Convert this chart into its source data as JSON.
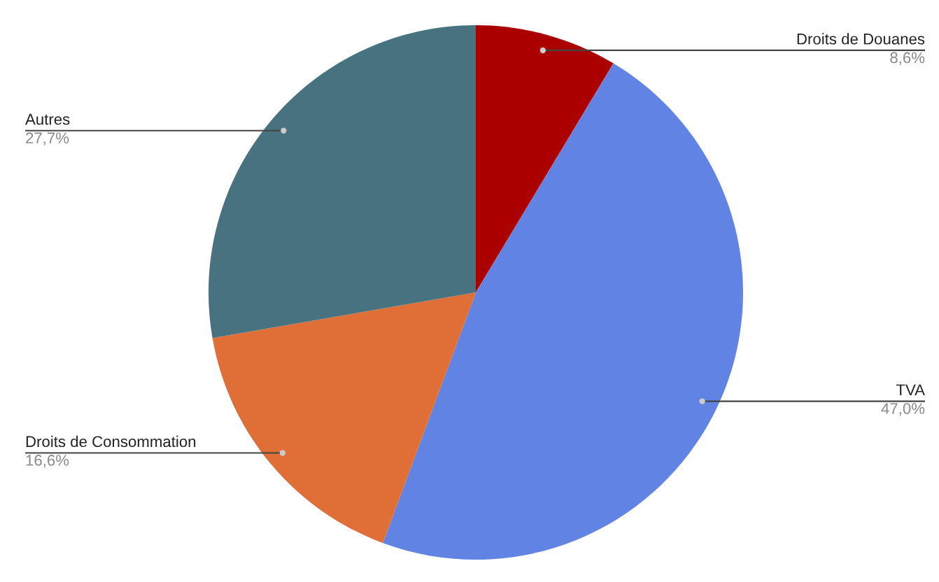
{
  "chart_data": {
    "type": "pie",
    "categories": [
      "Droits de Douanes",
      "TVA",
      "Droits de Consommation",
      "Autres"
    ],
    "values": [
      8.6,
      47.0,
      16.6,
      27.7
    ],
    "colors": [
      "#ab0000",
      "#6183e4",
      "#e06e37",
      "#46737f"
    ],
    "value_labels": [
      "8,6%",
      "47,0%",
      "16,6%",
      "27,7%"
    ]
  }
}
